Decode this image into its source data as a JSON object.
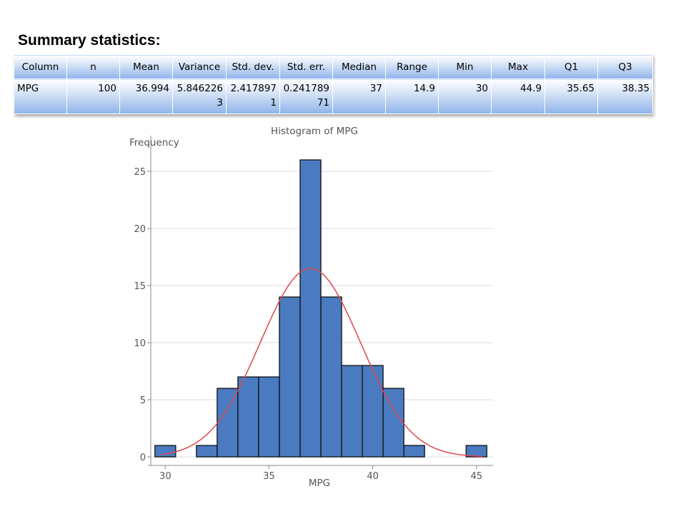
{
  "slide": {
    "title": "Summary statistics:"
  },
  "table": {
    "headers": [
      "Column",
      "n",
      "Mean",
      "Variance",
      "Std. dev.",
      "Std. err.",
      "Median",
      "Range",
      "Min",
      "Max",
      "Q1",
      "Q3"
    ],
    "rows": [
      [
        "MPG",
        "100",
        "36.994",
        "5.8462263",
        "2.4178971",
        "0.24178971",
        "37",
        "14.9",
        "30",
        "44.9",
        "35.65",
        "38.35"
      ]
    ]
  },
  "chart_data": {
    "type": "bar",
    "title": "Histogram of MPG",
    "xlabel": "MPG",
    "ylabel": "Frequency",
    "xlim": [
      29.3,
      45.8
    ],
    "ylim": [
      -0.5,
      27
    ],
    "xticks": [
      30,
      35,
      40,
      45
    ],
    "yticks": [
      0,
      5,
      10,
      15,
      20,
      25
    ],
    "grid": true,
    "bins": [
      {
        "x0": 29.5,
        "x1": 30.5,
        "count": 1
      },
      {
        "x0": 31.5,
        "x1": 32.5,
        "count": 1
      },
      {
        "x0": 32.5,
        "x1": 33.5,
        "count": 6
      },
      {
        "x0": 33.5,
        "x1": 34.5,
        "count": 7
      },
      {
        "x0": 34.5,
        "x1": 35.5,
        "count": 7
      },
      {
        "x0": 35.5,
        "x1": 36.5,
        "count": 14
      },
      {
        "x0": 36.5,
        "x1": 37.5,
        "count": 26
      },
      {
        "x0": 37.5,
        "x1": 38.5,
        "count": 14
      },
      {
        "x0": 38.5,
        "x1": 39.5,
        "count": 8
      },
      {
        "x0": 39.5,
        "x1": 40.5,
        "count": 8
      },
      {
        "x0": 40.5,
        "x1": 41.5,
        "count": 6
      },
      {
        "x0": 41.5,
        "x1": 42.5,
        "count": 1
      },
      {
        "x0": 44.5,
        "x1": 45.5,
        "count": 1
      }
    ],
    "curve": {
      "type": "normal",
      "mean": 36.994,
      "sd": 2.4178971,
      "n": 100,
      "bin_width": 1
    },
    "colors": {
      "bar_fill": "#4a7ac0",
      "bar_stroke": "#111111",
      "curve": "#e0474c",
      "grid": "#dddddd",
      "axis": "#888888"
    }
  }
}
